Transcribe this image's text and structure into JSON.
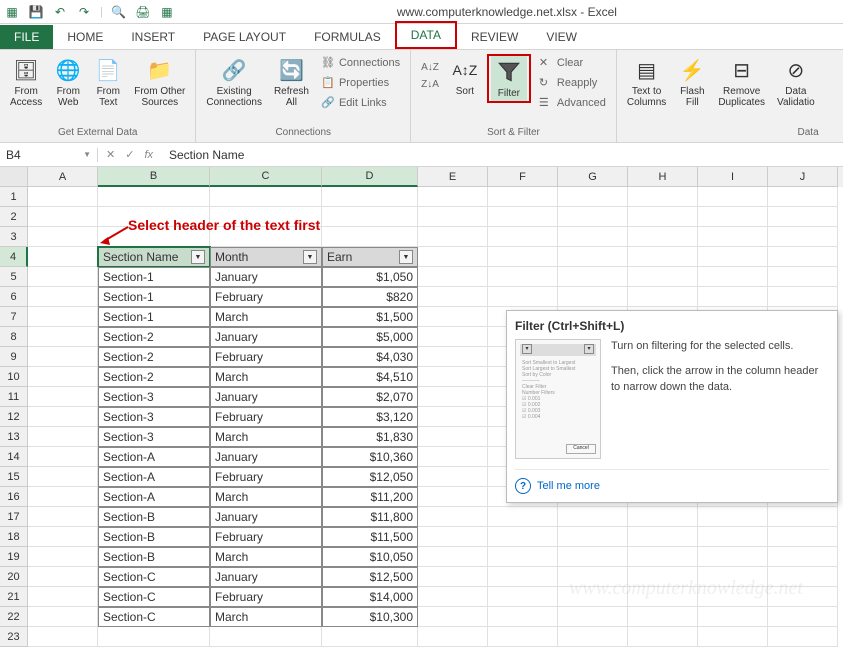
{
  "window": {
    "title": "www.computerknowledge.net.xlsx - Excel"
  },
  "tabs": {
    "file": "FILE",
    "items": [
      "HOME",
      "INSERT",
      "PAGE LAYOUT",
      "FORMULAS",
      "DATA",
      "REVIEW",
      "VIEW"
    ],
    "active": "DATA"
  },
  "ribbon": {
    "get_external": {
      "label": "Get External Data",
      "from_access": "From\nAccess",
      "from_web": "From\nWeb",
      "from_text": "From\nText",
      "from_other": "From Other\nSources"
    },
    "connections": {
      "label": "Connections",
      "existing": "Existing\nConnections",
      "refresh": "Refresh\nAll",
      "conn": "Connections",
      "props": "Properties",
      "links": "Edit Links"
    },
    "sort_filter": {
      "label": "Sort & Filter",
      "sort": "Sort",
      "filter": "Filter",
      "clear": "Clear",
      "reapply": "Reapply",
      "advanced": "Advanced"
    },
    "data_tools": {
      "label": "Data",
      "ttc": "Text to\nColumns",
      "flash": "Flash\nFill",
      "remove_dup": "Remove\nDuplicates",
      "validation": "Data\nValidatio"
    }
  },
  "formula_bar": {
    "name": "B4",
    "formula": "Section Name"
  },
  "annotation": {
    "text": "Select header of the text first"
  },
  "columns": {
    "A": 70,
    "B": 112,
    "C": 112,
    "D": 96,
    "E": 70,
    "F": 70,
    "G": 70,
    "H": 70,
    "I": 70,
    "J": 70
  },
  "table": {
    "headers": [
      "Section Name",
      "Month",
      "Earn"
    ],
    "rows": [
      [
        "Section-1",
        "January",
        "$1,050"
      ],
      [
        "Section-1",
        "February",
        "$820"
      ],
      [
        "Section-1",
        "March",
        "$1,500"
      ],
      [
        "Section-2",
        "January",
        "$5,000"
      ],
      [
        "Section-2",
        "February",
        "$4,030"
      ],
      [
        "Section-2",
        "March",
        "$4,510"
      ],
      [
        "Section-3",
        "January",
        "$2,070"
      ],
      [
        "Section-3",
        "February",
        "$3,120"
      ],
      [
        "Section-3",
        "March",
        "$1,830"
      ],
      [
        "Section-A",
        "January",
        "$10,360"
      ],
      [
        "Section-A",
        "February",
        "$12,050"
      ],
      [
        "Section-A",
        "March",
        "$11,200"
      ],
      [
        "Section-B",
        "January",
        "$11,800"
      ],
      [
        "Section-B",
        "February",
        "$11,500"
      ],
      [
        "Section-B",
        "March",
        "$10,050"
      ],
      [
        "Section-C",
        "January",
        "$12,500"
      ],
      [
        "Section-C",
        "February",
        "$14,000"
      ],
      [
        "Section-C",
        "March",
        "$10,300"
      ]
    ]
  },
  "tooltip": {
    "title": "Filter (Ctrl+Shift+L)",
    "p1": "Turn on filtering for the selected cells.",
    "p2": "Then, click the arrow in the column header to narrow down the data.",
    "link": "Tell me more"
  },
  "watermark": "www.computerknowledge.net",
  "colors": {
    "accent": "#217346",
    "highlight": "#c00000"
  }
}
